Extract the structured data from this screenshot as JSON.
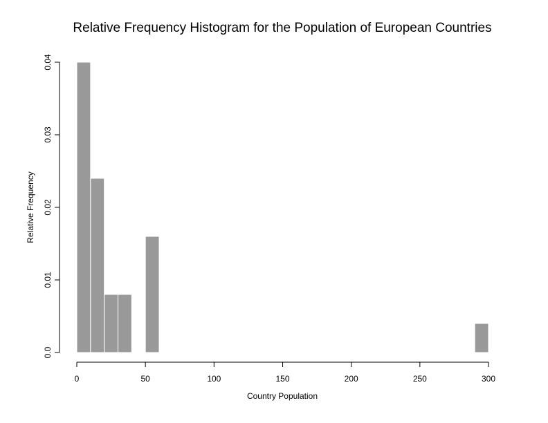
{
  "chart_data": {
    "type": "bar",
    "title": "Relative Frequency Histogram for the Population of European Countries",
    "xlabel": "Country Population",
    "ylabel": "Relative Frequency",
    "xlim": [
      0,
      300
    ],
    "ylim": [
      0,
      0.04
    ],
    "bin_width": 10,
    "x_ticks": [
      0,
      50,
      100,
      150,
      200,
      250,
      300
    ],
    "x_tick_labels": [
      "0",
      "50",
      "100",
      "150",
      "200",
      "250",
      "300"
    ],
    "y_ticks": [
      0,
      0.01,
      0.02,
      0.03,
      0.04
    ],
    "y_tick_labels": [
      "0.0",
      "0.01",
      "0.02",
      "0.03",
      "0.04"
    ],
    "bins": [
      {
        "start": 0,
        "end": 10,
        "value": 0.04
      },
      {
        "start": 10,
        "end": 20,
        "value": 0.024
      },
      {
        "start": 20,
        "end": 30,
        "value": 0.008
      },
      {
        "start": 30,
        "end": 40,
        "value": 0.008
      },
      {
        "start": 50,
        "end": 60,
        "value": 0.016
      },
      {
        "start": 290,
        "end": 300,
        "value": 0.004
      }
    ],
    "bar_color": "#999999",
    "grid": false
  }
}
